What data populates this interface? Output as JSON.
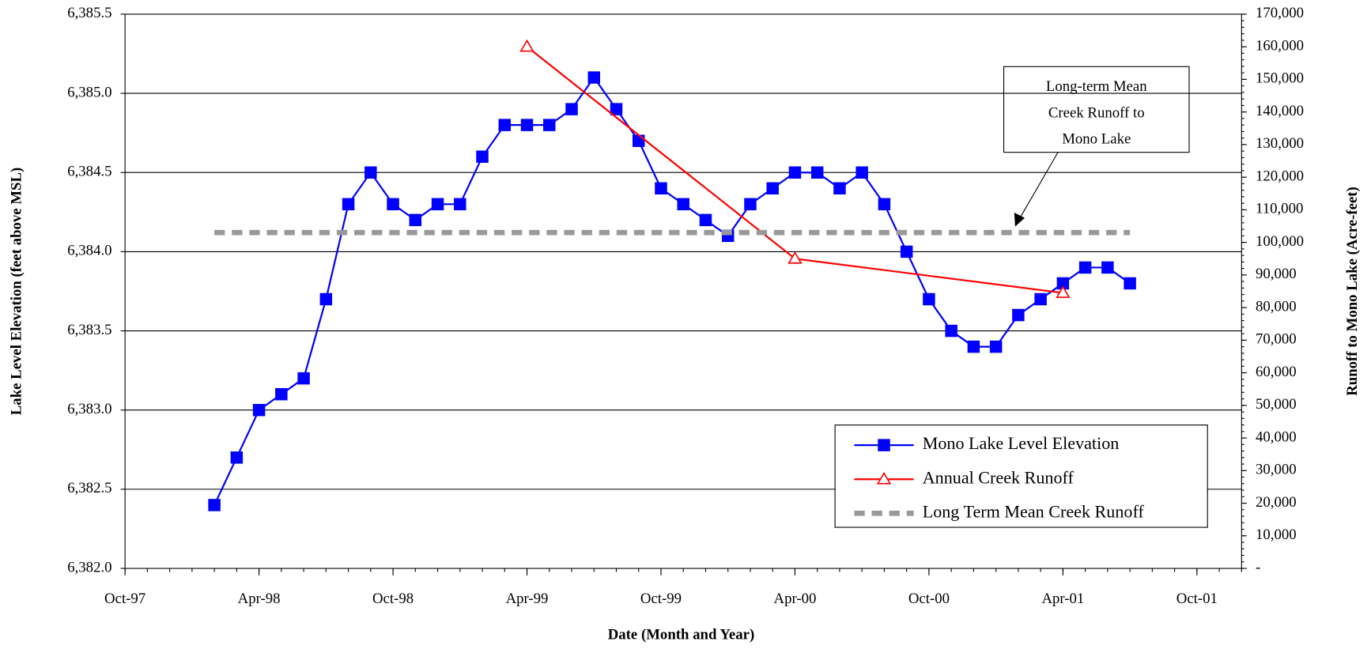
{
  "chart_data": {
    "type": "line",
    "x_label": "Date (Month and Year)",
    "y_label": "Lake Level Elevation (feet above MSL)",
    "y2_label": "Runoff to Mono Lake (Acre-feet)",
    "xlim": [
      "Oct-97",
      "Dec-01"
    ],
    "xticks": [
      "Oct-97",
      "Apr-98",
      "Oct-98",
      "Apr-99",
      "Oct-99",
      "Apr-00",
      "Oct-00",
      "Apr-01",
      "Oct-01"
    ],
    "ylim": [
      6382.0,
      6385.5
    ],
    "yticks": [
      {
        "value": 6382.0,
        "label": "6,382.0"
      },
      {
        "value": 6382.5,
        "label": "6,382.5"
      },
      {
        "value": 6383.0,
        "label": "6,383.0"
      },
      {
        "value": 6383.5,
        "label": "6,383.5"
      },
      {
        "value": 6384.0,
        "label": "6,384.0"
      },
      {
        "value": 6384.5,
        "label": "6,384.5"
      },
      {
        "value": 6385.0,
        "label": "6,385.0"
      },
      {
        "value": 6385.5,
        "label": "6,385.5"
      }
    ],
    "y2lim": [
      0,
      170000
    ],
    "y2ticks": [
      {
        "value": 0,
        "label": "-"
      },
      {
        "value": 10000,
        "label": "10,000"
      },
      {
        "value": 20000,
        "label": "20,000"
      },
      {
        "value": 30000,
        "label": "30,000"
      },
      {
        "value": 40000,
        "label": "40,000"
      },
      {
        "value": 50000,
        "label": "50,000"
      },
      {
        "value": 60000,
        "label": "60,000"
      },
      {
        "value": 70000,
        "label": "70,000"
      },
      {
        "value": 80000,
        "label": "80,000"
      },
      {
        "value": 90000,
        "label": "90,000"
      },
      {
        "value": 100000,
        "label": "100,000"
      },
      {
        "value": 110000,
        "label": "110,000"
      },
      {
        "value": 120000,
        "label": "120,000"
      },
      {
        "value": 130000,
        "label": "130,000"
      },
      {
        "value": 140000,
        "label": "140,000"
      },
      {
        "value": 150000,
        "label": "150,000"
      },
      {
        "value": 160000,
        "label": "160,000"
      },
      {
        "value": 170000,
        "label": "170,000"
      }
    ],
    "grid": true,
    "legend": "lower right",
    "annotation": [
      "Long-term Mean",
      "Creek Runoff to",
      "Mono Lake"
    ],
    "series": [
      {
        "name": "Mono Lake Level Elevation",
        "color": "#0000ff",
        "marker": "square",
        "x": [
          "Feb-98",
          "Mar-98",
          "Apr-98",
          "May-98",
          "Jun-98",
          "Jul-98",
          "Aug-98",
          "Sep-98",
          "Oct-98",
          "Nov-98",
          "Dec-98",
          "Jan-99",
          "Feb-99",
          "Mar-99",
          "Apr-99",
          "May-99",
          "Jun-99",
          "Jul-99",
          "Aug-99",
          "Sep-99",
          "Oct-99",
          "Nov-99",
          "Dec-99",
          "Jan-00",
          "Feb-00",
          "Mar-00",
          "Apr-00",
          "May-00",
          "Jun-00",
          "Jul-00",
          "Aug-00",
          "Sep-00",
          "Oct-00",
          "Nov-00",
          "Dec-00",
          "Jan-01",
          "Feb-01",
          "Mar-01",
          "Apr-01",
          "May-01",
          "Jun-01",
          "Jul-01"
        ],
        "values": [
          6382.4,
          6382.7,
          6383.0,
          6383.1,
          6383.2,
          6383.7,
          6384.3,
          6384.5,
          6384.3,
          6384.2,
          6384.3,
          6384.3,
          6384.6,
          6384.8,
          6384.8,
          6384.8,
          6384.9,
          6385.1,
          6384.9,
          6384.7,
          6384.4,
          6384.3,
          6384.2,
          6384.1,
          6384.3,
          6384.4,
          6384.5,
          6384.5,
          6384.4,
          6384.5,
          6384.3,
          6384.0,
          6383.7,
          6383.5,
          6383.4,
          6383.4,
          6383.6,
          6383.7,
          6383.8,
          6383.9,
          6383.9,
          6383.8
        ]
      },
      {
        "name": "Annual Creek Runoff",
        "color": "#ff0000",
        "marker": "triangle",
        "axis": "y2",
        "x": [
          "Apr-99",
          "Apr-00",
          "Apr-01"
        ],
        "values": [
          160000,
          95000,
          84500
        ]
      },
      {
        "name": "Long Term Mean Creek Runoff",
        "color": "#999999",
        "linestyle": "dashed",
        "axis": "y2",
        "x": [
          "Feb-98",
          "Jul-01"
        ],
        "values": [
          103000,
          103000
        ]
      }
    ]
  }
}
